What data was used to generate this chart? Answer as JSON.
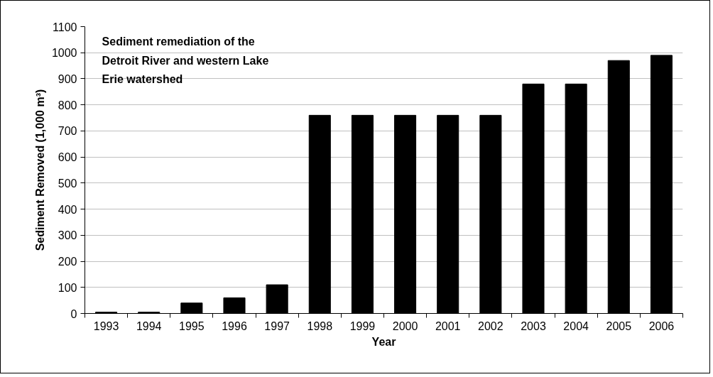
{
  "chart_data": {
    "type": "bar",
    "title": "Sediment remediation of the\nDetroit River and western Lake\nErie watershed",
    "xlabel": "Year",
    "ylabel": "Sediment Removed (1,000 m³)",
    "categories": [
      "1993",
      "1994",
      "1995",
      "1996",
      "1997",
      "1998",
      "1999",
      "2000",
      "2001",
      "2002",
      "2003",
      "2004",
      "2005",
      "2006"
    ],
    "values": [
      5,
      5,
      40,
      60,
      110,
      760,
      760,
      760,
      760,
      760,
      880,
      880,
      970,
      990
    ],
    "color": "#000000",
    "ylim": [
      0,
      1100
    ],
    "yticks": [
      0,
      100,
      200,
      300,
      400,
      500,
      600,
      700,
      800,
      900,
      1000,
      1100
    ],
    "grid": "y"
  }
}
